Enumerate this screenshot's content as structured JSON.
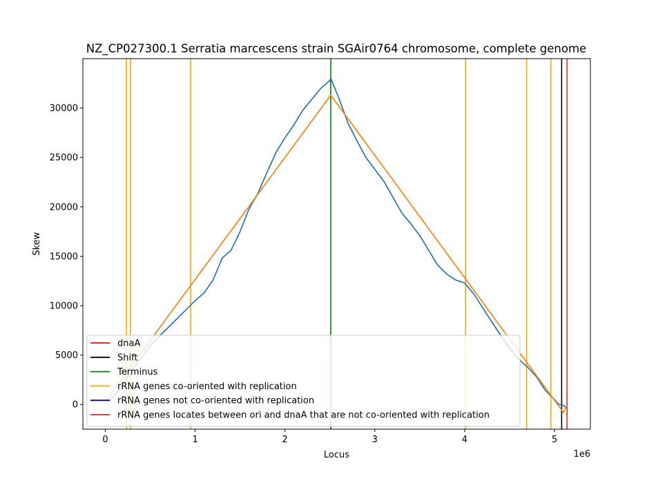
{
  "chart_data": {
    "type": "line",
    "title": "NZ_CP027300.1 Serratia marcescens strain SGAir0764 chromosome, complete genome",
    "xlabel": "Locus",
    "ylabel": "Skew",
    "x_offset_label": "1e6",
    "xlim": [
      -250000,
      5400000
    ],
    "ylim": [
      -2500,
      35000
    ],
    "x_ticks": [
      0,
      1000000,
      2000000,
      3000000,
      4000000,
      5000000
    ],
    "x_tick_labels": [
      "0",
      "1",
      "2",
      "3",
      "4",
      "5"
    ],
    "y_ticks": [
      0,
      5000,
      10000,
      15000,
      20000,
      25000,
      30000
    ],
    "y_tick_labels": [
      "0",
      "5000",
      "10000",
      "15000",
      "20000",
      "25000",
      "30000"
    ],
    "grid": false,
    "legend_position": "lower-left",
    "series": [
      {
        "color": "#1f77b4",
        "x": [
          0,
          100000,
          200000,
          300000,
          400000,
          500000,
          600000,
          700000,
          800000,
          900000,
          1000000,
          1100000,
          1200000,
          1300000,
          1400000,
          1500000,
          1600000,
          1700000,
          1800000,
          1900000,
          2000000,
          2100000,
          2200000,
          2300000,
          2400000,
          2500000,
          2510000,
          2600000,
          2700000,
          2800000,
          2900000,
          3000000,
          3100000,
          3200000,
          3300000,
          3400000,
          3500000,
          3600000,
          3700000,
          3800000,
          3900000,
          4000000,
          4100000,
          4200000,
          4300000,
          4400000,
          4500000,
          4600000,
          4700000,
          4800000,
          4900000,
          5000000,
          5050000,
          5100000,
          5130000
        ],
        "y": [
          0,
          900,
          2100,
          3500,
          4700,
          6000,
          6900,
          7800,
          8700,
          9600,
          10500,
          11300,
          12600,
          14800,
          15600,
          17500,
          19800,
          21400,
          23500,
          25500,
          27000,
          28300,
          29800,
          30900,
          32000,
          32800,
          33000,
          31000,
          28500,
          26700,
          25000,
          23800,
          22600,
          21000,
          19400,
          18300,
          17100,
          15600,
          14100,
          13200,
          12600,
          12300,
          11200,
          9800,
          8400,
          7000,
          5700,
          4600,
          3800,
          2800,
          1400,
          500,
          0,
          -100,
          -300
        ]
      },
      {
        "color": "#ff7f0e",
        "x": [
          0,
          2510000,
          5100000,
          5130000
        ],
        "y": [
          300,
          31300,
          -800,
          -300
        ]
      }
    ],
    "vlines": [
      {
        "x": 235000,
        "color": "#ffa500"
      },
      {
        "x": 280000,
        "color": "#ffa500"
      },
      {
        "x": 950000,
        "color": "#ffa500"
      },
      {
        "x": 4010000,
        "color": "#ffa500"
      },
      {
        "x": 4690000,
        "color": "#ffa500"
      },
      {
        "x": 4960000,
        "color": "#ffa500"
      },
      {
        "x": 5080000,
        "color": "#000000"
      },
      {
        "x": 5140000,
        "color": "#e03030"
      },
      {
        "x": 2510000,
        "color": "#008000"
      }
    ],
    "legend": [
      {
        "label": "dnaA",
        "color": "#ff0000"
      },
      {
        "label": "Shift",
        "color": "#000000"
      },
      {
        "label": "Terminus",
        "color": "#008000"
      },
      {
        "label": "rRNA genes co-oriented with replication",
        "color": "#ffa500"
      },
      {
        "label": "rRNA genes not co-oriented with replication",
        "color": "#0000cd"
      },
      {
        "label": "rRNA genes locates between ori and dnaA that are not co-oriented with replication",
        "color": "#d62728"
      }
    ]
  }
}
